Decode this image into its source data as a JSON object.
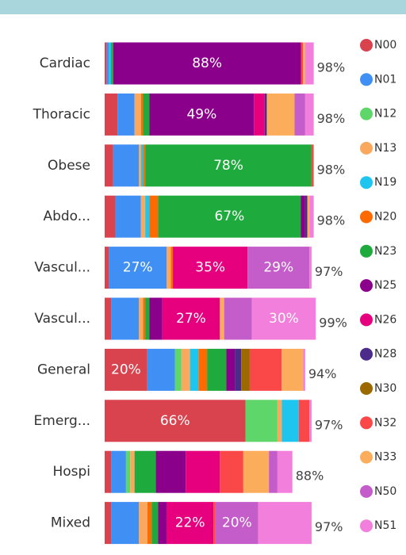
{
  "chart_data": {
    "type": "stacked-bar-horizontal",
    "categories": [
      "Cardiac",
      "Thoracic",
      "Obese",
      "Abdo...",
      "Vascul...",
      "Vascul...",
      "General",
      "Emerg...",
      "Hospi",
      "Mixed"
    ],
    "xlim": [
      0,
      100
    ],
    "series": [
      {
        "name": "N00",
        "color": "#d9434e",
        "values": [
          1,
          6,
          4,
          5,
          2,
          3,
          20,
          66,
          3,
          3
        ],
        "value_labels": [
          null,
          null,
          null,
          null,
          null,
          null,
          "20%",
          "66%",
          null,
          null
        ]
      },
      {
        "name": "N01",
        "color": "#3f8ff5",
        "values": [
          1,
          8,
          12,
          12,
          27,
          13,
          13,
          0,
          7,
          13
        ],
        "value_labels": [
          null,
          null,
          null,
          null,
          "27%",
          null,
          null,
          null,
          null,
          null
        ]
      },
      {
        "name": "N12",
        "color": "#5fd66a",
        "values": [
          0,
          0,
          0,
          0,
          0,
          0,
          3,
          15,
          2,
          0
        ]
      },
      {
        "name": "N13",
        "color": "#fba85f",
        "values": [
          0,
          3,
          1,
          2,
          2,
          2,
          4,
          2,
          2,
          4
        ]
      },
      {
        "name": "N19",
        "color": "#1ec6ef",
        "values": [
          1,
          0,
          1,
          2,
          0,
          0,
          4,
          8,
          0,
          0
        ]
      },
      {
        "name": "N20",
        "color": "#ff6a00",
        "values": [
          0,
          1,
          1,
          4,
          1,
          1,
          4,
          0,
          0,
          2
        ]
      },
      {
        "name": "N23",
        "color": "#1eaa3c",
        "values": [
          1,
          3,
          78,
          67,
          0,
          2,
          9,
          0,
          10,
          3
        ],
        "value_labels": [
          null,
          null,
          "78%",
          "67%",
          null,
          null,
          null,
          null,
          null,
          null
        ]
      },
      {
        "name": "N25",
        "color": "#8b008b",
        "values": [
          88,
          49,
          0,
          2,
          0,
          6,
          4,
          0,
          14,
          4
        ],
        "value_labels": [
          "88%",
          "49%",
          null,
          null,
          null,
          null,
          null,
          null,
          null,
          null
        ]
      },
      {
        "name": "N26",
        "color": "#e6007e",
        "values": [
          0,
          5,
          0,
          0,
          35,
          27,
          0,
          0,
          16,
          22
        ],
        "value_labels": [
          null,
          null,
          null,
          null,
          "35%",
          "27%",
          null,
          null,
          null,
          "22%"
        ]
      },
      {
        "name": "N28",
        "color": "#4b2c8a",
        "values": [
          0,
          1,
          0,
          1,
          0,
          0,
          3,
          0,
          0,
          0
        ]
      },
      {
        "name": "N30",
        "color": "#9a6a00",
        "values": [
          0,
          0,
          0,
          0,
          0,
          0,
          4,
          0,
          0,
          0
        ]
      },
      {
        "name": "N32",
        "color": "#fa4848",
        "values": [
          1,
          0,
          1,
          0,
          0,
          0,
          15,
          5,
          11,
          1
        ]
      },
      {
        "name": "N33",
        "color": "#fbad5b",
        "values": [
          1,
          13,
          0,
          1,
          0,
          2,
          10,
          0,
          12,
          0
        ]
      },
      {
        "name": "N50",
        "color": "#c45cc9",
        "values": [
          0,
          5,
          0,
          0,
          29,
          13,
          0,
          0,
          4,
          20
        ],
        "value_labels": [
          null,
          null,
          null,
          null,
          "29%",
          null,
          null,
          null,
          null,
          "20%"
        ]
      },
      {
        "name": "N51",
        "color": "#f27fdc",
        "values": [
          4,
          4,
          0,
          2,
          1,
          30,
          1,
          1,
          7,
          25
        ],
        "value_labels": [
          null,
          null,
          null,
          null,
          null,
          "30%",
          null,
          null,
          null,
          null
        ]
      }
    ],
    "totals": [
      98,
      98,
      98,
      98,
      97,
      99,
      94,
      97,
      88,
      97
    ],
    "total_labels": [
      "98%",
      "98%",
      "98%",
      "98%",
      "97%",
      "99%",
      "94%",
      "97%",
      "88%",
      "97%"
    ],
    "legend": "right"
  }
}
